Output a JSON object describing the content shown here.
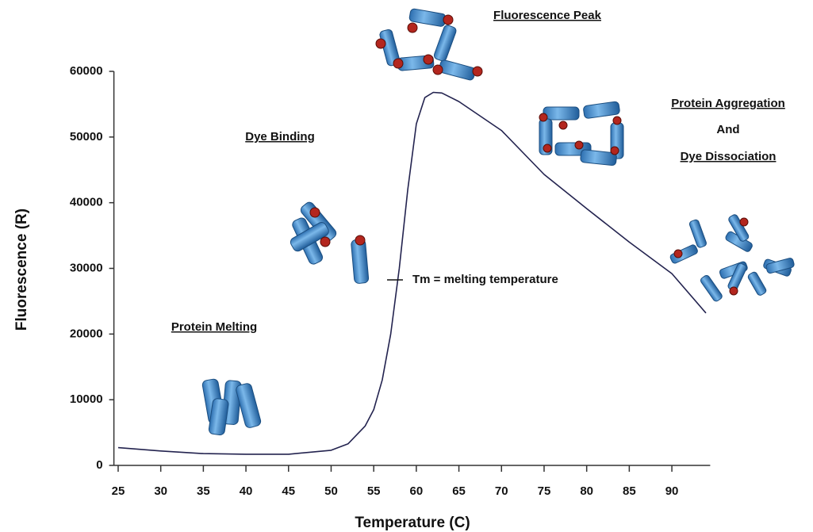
{
  "chart_data": {
    "type": "line",
    "x_label": "Temperature (C)",
    "y_label": "Fluorescence (R)",
    "x": [
      25,
      30,
      35,
      40,
      45,
      50,
      52,
      54,
      55,
      56,
      57,
      58,
      59,
      60,
      61,
      62,
      63,
      65,
      70,
      75,
      80,
      85,
      90,
      94
    ],
    "series": [
      {
        "name": "Fluorescence",
        "color": "#23234f",
        "values": [
          2700,
          2200,
          1800,
          1700,
          1700,
          2300,
          3300,
          6000,
          8500,
          13000,
          20000,
          30000,
          42000,
          52000,
          56000,
          56800,
          56700,
          55400,
          51000,
          44300,
          39100,
          34000,
          29200,
          23200
        ]
      }
    ],
    "xlim": [
      24.5,
      94.5
    ],
    "xticks": [
      25,
      30,
      35,
      40,
      45,
      50,
      55,
      60,
      65,
      70,
      75,
      80,
      85,
      90
    ],
    "ylim": [
      0,
      60000
    ],
    "yticks": [
      0,
      10000,
      20000,
      30000,
      40000,
      50000,
      60000
    ],
    "annotations": [
      "Fluorescence Peak",
      "Dye Binding",
      "Protein Aggregation",
      "And",
      "Dye Dissociation",
      "Protein Melting",
      "Tm = melting temperature"
    ]
  }
}
